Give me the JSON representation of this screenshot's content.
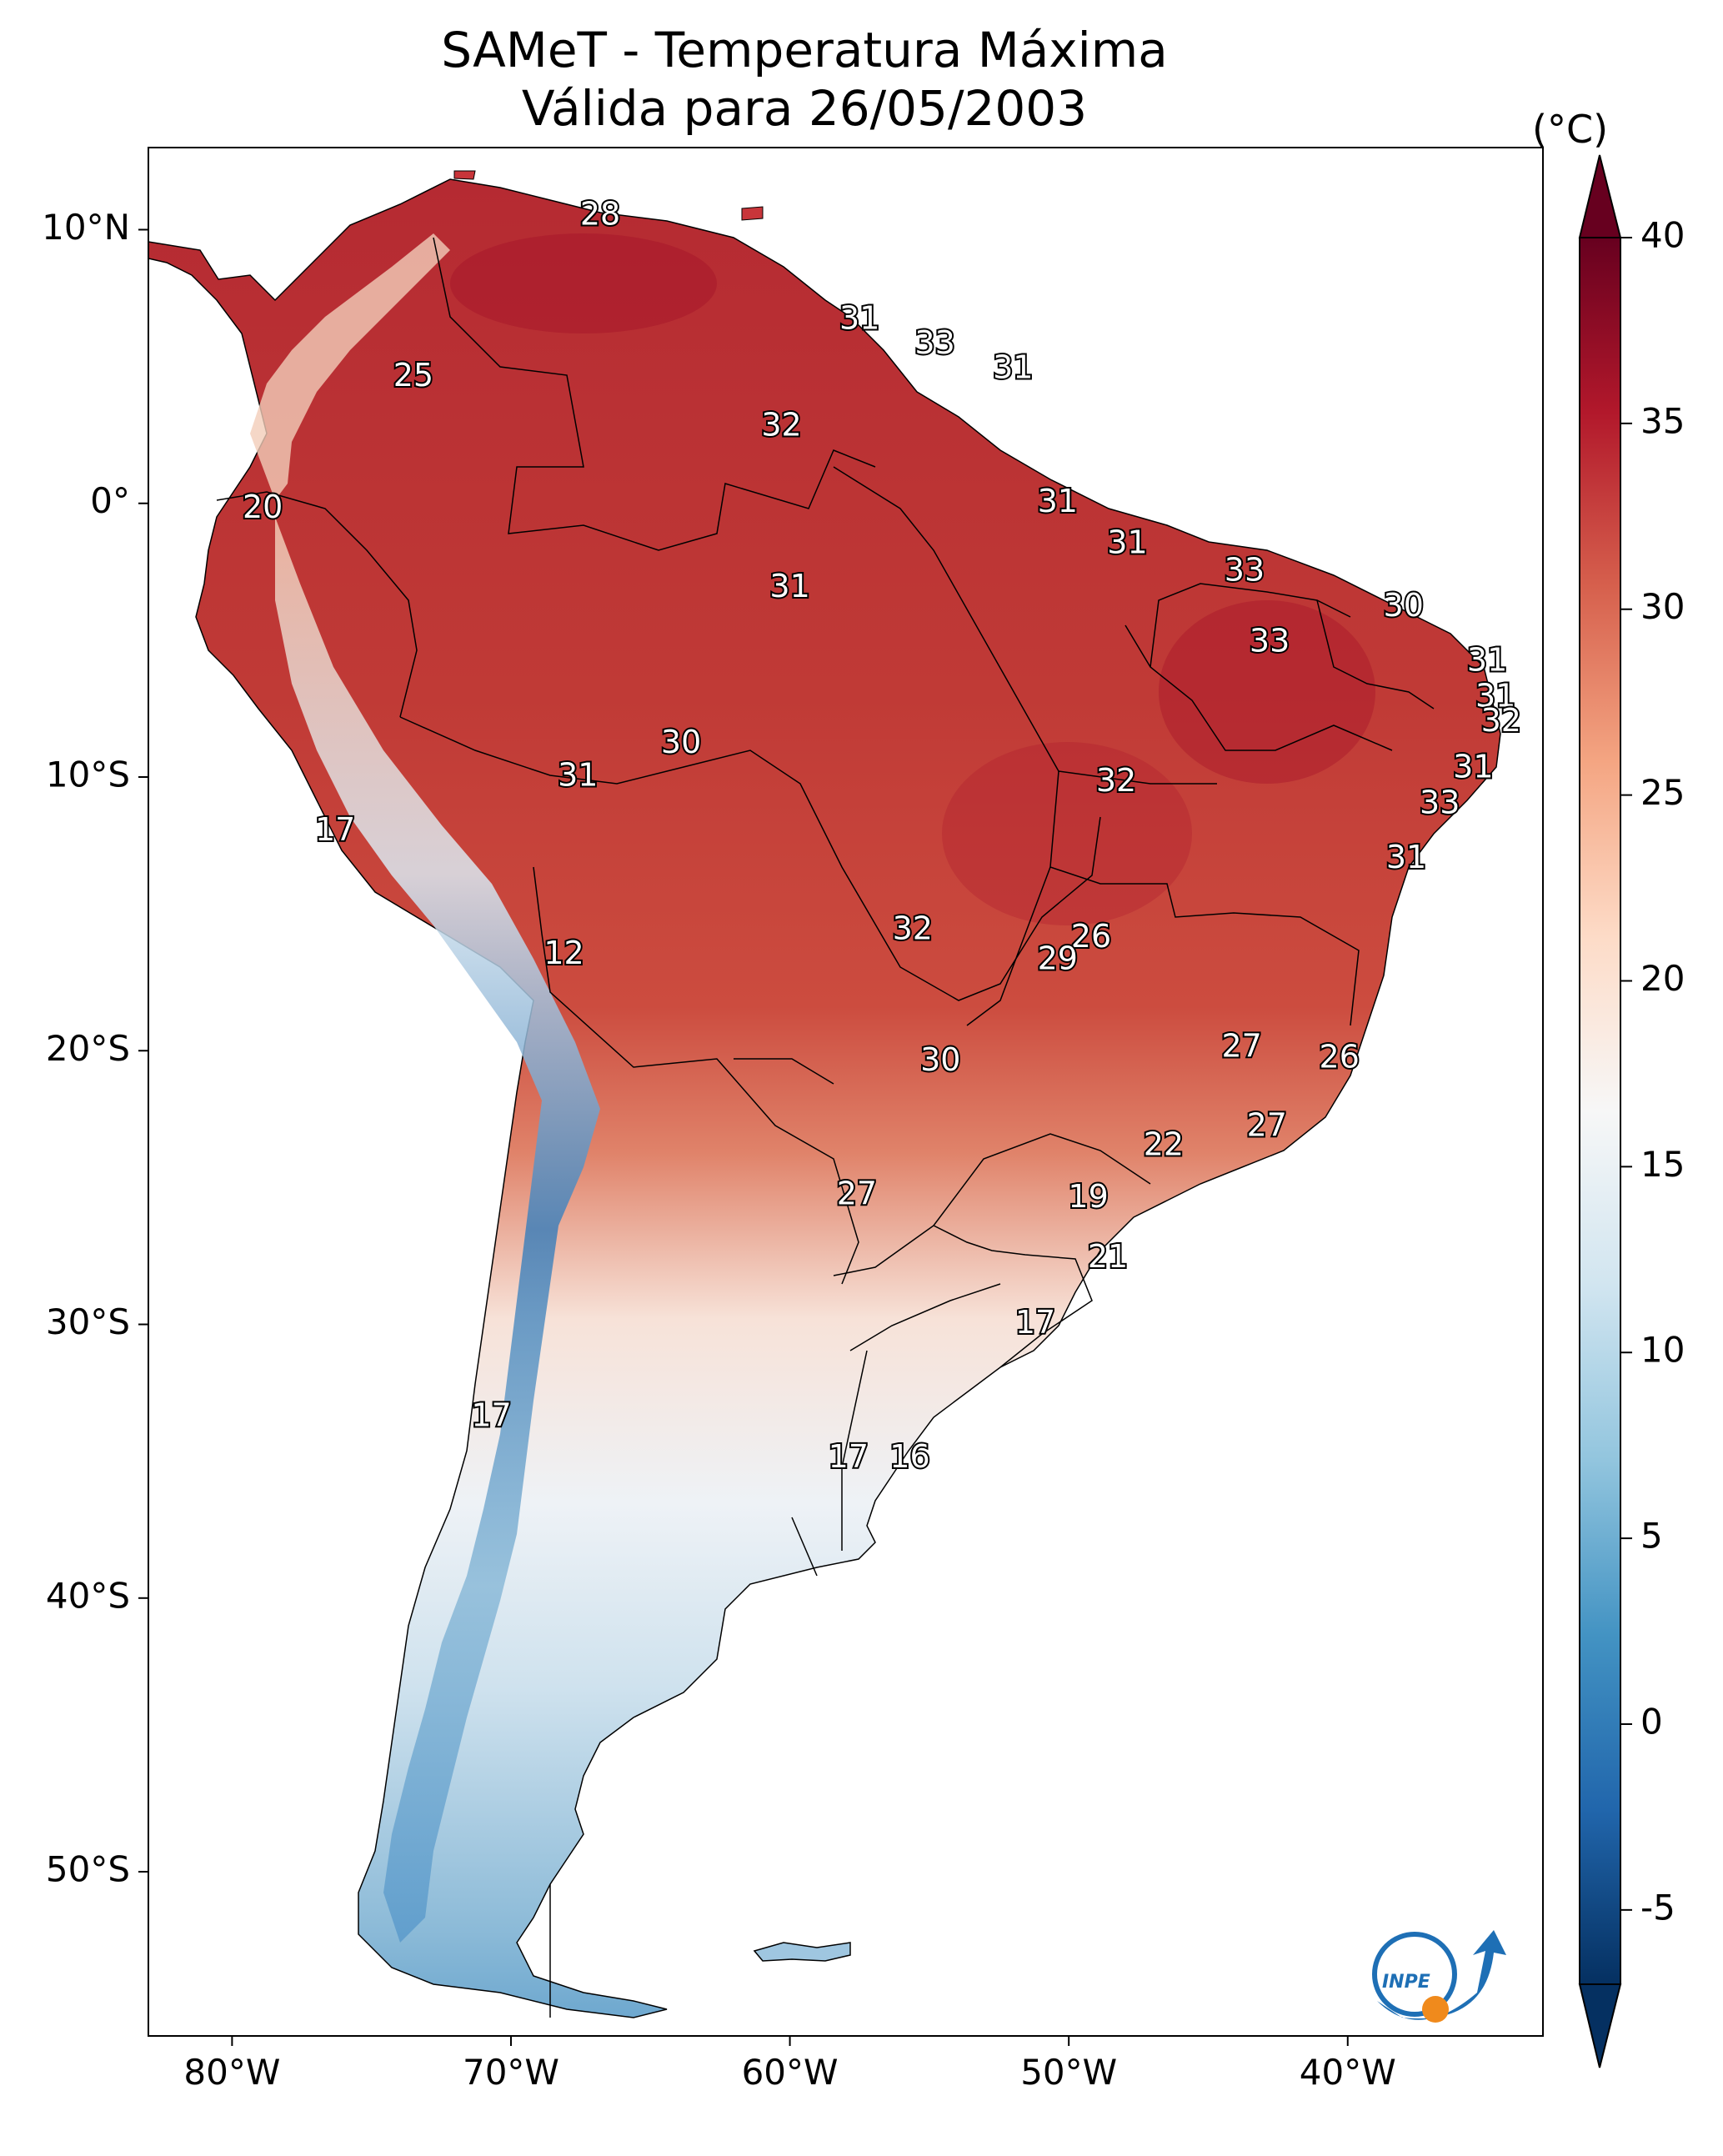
{
  "title": {
    "line1": "SAMeT - Temperatura Máxima",
    "line2": "Válida para 26/05/2003"
  },
  "colorbar": {
    "unit": "(°C)",
    "ticks": [
      40,
      35,
      30,
      25,
      20,
      15,
      10,
      5,
      0,
      -5
    ],
    "tick_labels": [
      "40",
      "35",
      "30",
      "25",
      "20",
      "15",
      "10",
      "5",
      "0",
      "-5"
    ],
    "range": [
      -7,
      40
    ],
    "colors": [
      "#053061",
      "#2166ac",
      "#4393c3",
      "#92c5de",
      "#d1e5f0",
      "#f7f7f7",
      "#fddbc7",
      "#f4a582",
      "#d6604d",
      "#b2182b",
      "#67001f"
    ]
  },
  "axes": {
    "lon_labels": [
      "80°W",
      "70°W",
      "60°W",
      "50°W",
      "40°W"
    ],
    "lat_labels": [
      "10°N",
      "0°",
      "10°S",
      "20°S",
      "30°S",
      "40°S",
      "50°S"
    ]
  },
  "map": {
    "extent_lon": [
      -83,
      -33
    ],
    "extent_lat": [
      -56,
      13
    ],
    "station_labels": [
      {
        "text": "28",
        "lon": -66.8,
        "lat": 10.5
      },
      {
        "text": "25",
        "lon": -73.5,
        "lat": 4.6
      },
      {
        "text": "31",
        "lon": -57.5,
        "lat": 6.7
      },
      {
        "text": "33",
        "lon": -54.8,
        "lat": 5.8
      },
      {
        "text": "31",
        "lon": -52.0,
        "lat": 4.9
      },
      {
        "text": "32",
        "lon": -60.3,
        "lat": 2.8
      },
      {
        "text": "20",
        "lon": -78.9,
        "lat": -0.2
      },
      {
        "text": "31",
        "lon": -50.4,
        "lat": 0.0
      },
      {
        "text": "31",
        "lon": -47.9,
        "lat": -1.5
      },
      {
        "text": "33",
        "lon": -43.7,
        "lat": -2.5
      },
      {
        "text": "31",
        "lon": -60.0,
        "lat": -3.1
      },
      {
        "text": "30",
        "lon": -38.0,
        "lat": -3.8
      },
      {
        "text": "33",
        "lon": -42.8,
        "lat": -5.1
      },
      {
        "text": "31",
        "lon": -35.0,
        "lat": -5.8
      },
      {
        "text": "31",
        "lon": -34.7,
        "lat": -7.1
      },
      {
        "text": "32",
        "lon": -34.5,
        "lat": -8.0
      },
      {
        "text": "30",
        "lon": -63.9,
        "lat": -8.8
      },
      {
        "text": "31",
        "lon": -35.5,
        "lat": -9.7
      },
      {
        "text": "31",
        "lon": -67.6,
        "lat": -10.0
      },
      {
        "text": "32",
        "lon": -48.3,
        "lat": -10.2
      },
      {
        "text": "33",
        "lon": -36.7,
        "lat": -11.0
      },
      {
        "text": "17",
        "lon": -76.3,
        "lat": -12.0
      },
      {
        "text": "31",
        "lon": -37.9,
        "lat": -13.0
      },
      {
        "text": "12",
        "lon": -68.1,
        "lat": -16.5
      },
      {
        "text": "26",
        "lon": -49.2,
        "lat": -15.9
      },
      {
        "text": "32",
        "lon": -55.6,
        "lat": -15.6
      },
      {
        "text": "29",
        "lon": -50.4,
        "lat": -16.7
      },
      {
        "text": "27",
        "lon": -43.8,
        "lat": -19.9
      },
      {
        "text": "26",
        "lon": -40.3,
        "lat": -20.3
      },
      {
        "text": "30",
        "lon": -54.6,
        "lat": -20.4
      },
      {
        "text": "27",
        "lon": -42.9,
        "lat": -22.8
      },
      {
        "text": "22",
        "lon": -46.6,
        "lat": -23.5
      },
      {
        "text": "19",
        "lon": -49.3,
        "lat": -25.4
      },
      {
        "text": "27",
        "lon": -57.6,
        "lat": -25.3
      },
      {
        "text": "21",
        "lon": -48.6,
        "lat": -27.6
      },
      {
        "text": "17",
        "lon": -51.2,
        "lat": -30.0
      },
      {
        "text": "17",
        "lon": -70.7,
        "lat": -33.4
      },
      {
        "text": "17",
        "lon": -57.9,
        "lat": -34.9
      },
      {
        "text": "16",
        "lon": -55.7,
        "lat": -34.9
      }
    ]
  },
  "logo": {
    "text": "INPE"
  }
}
